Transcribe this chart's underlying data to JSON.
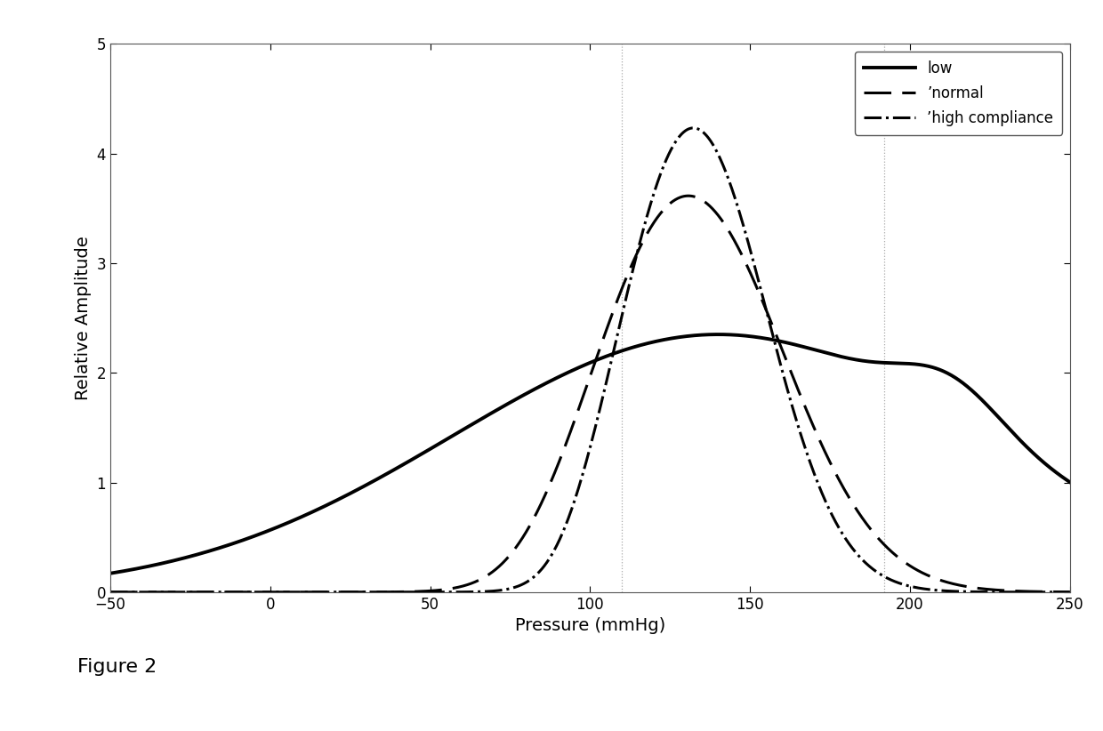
{
  "title": "",
  "xlabel": "Pressure (mmHg)",
  "ylabel": "Relative Amplitude",
  "xlim": [
    -50,
    250
  ],
  "ylim": [
    0,
    5
  ],
  "xticks": [
    -50,
    0,
    50,
    100,
    150,
    200,
    250
  ],
  "yticks": [
    0,
    1,
    2,
    3,
    4,
    5
  ],
  "vline1_x": 110,
  "vline2_x": 192,
  "legend_labels": [
    "low",
    "’normal",
    "’high compliance"
  ],
  "line_color": "#000000",
  "background_color": "#ffffff",
  "figure_label": "Figure 2"
}
